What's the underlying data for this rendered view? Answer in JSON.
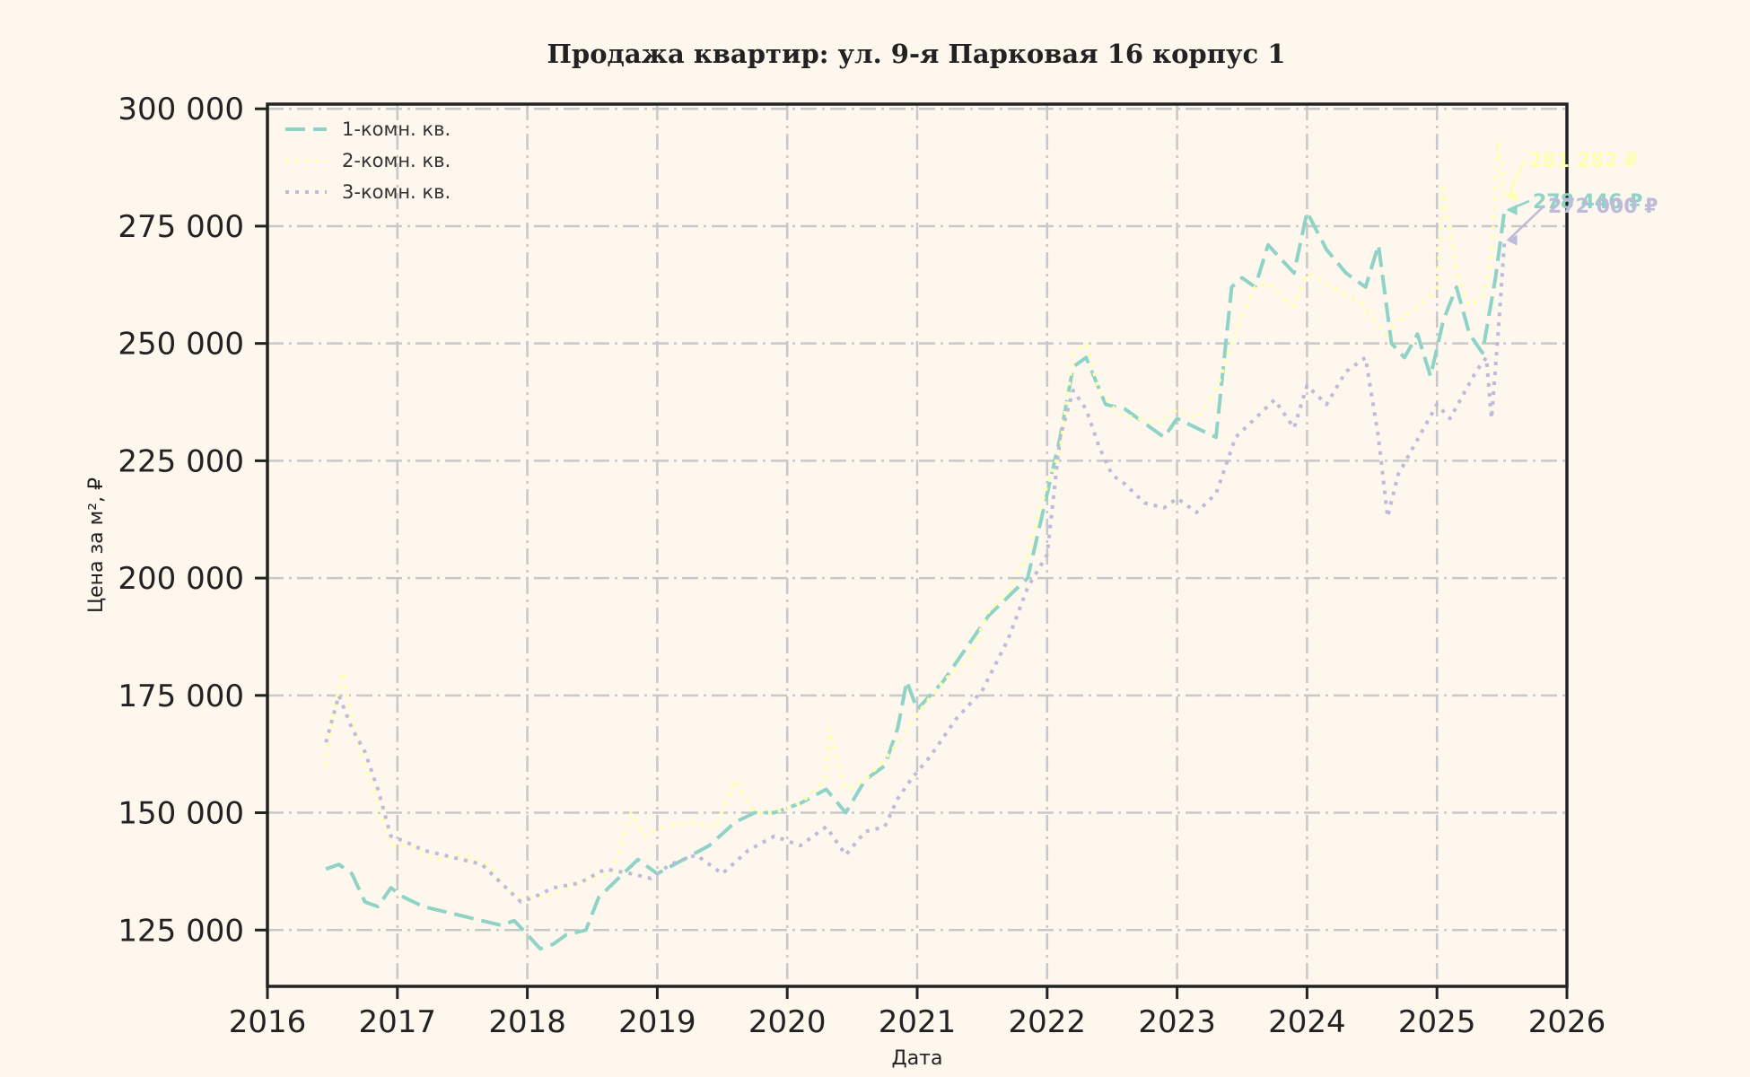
{
  "chart_data": {
    "type": "line",
    "title": "Продажа квартир: ул. 9-я Парковая 16 корпус 1",
    "xlabel": "Дата",
    "ylabel": "Цена за м², ₽",
    "xlim": [
      2016,
      2026
    ],
    "ylim": [
      113000,
      301000
    ],
    "x_ticks": [
      "2016",
      "2017",
      "2018",
      "2019",
      "2020",
      "2021",
      "2022",
      "2023",
      "2024",
      "2025",
      "2026"
    ],
    "y_ticks": [
      {
        "value": 125000,
        "label": "125 000"
      },
      {
        "value": 150000,
        "label": "150 000"
      },
      {
        "value": 175000,
        "label": "175 000"
      },
      {
        "value": 200000,
        "label": "200 000"
      },
      {
        "value": 225000,
        "label": "225 000"
      },
      {
        "value": 250000,
        "label": "250 000"
      },
      {
        "value": 275000,
        "label": "275 000"
      },
      {
        "value": 300000,
        "label": "300 000"
      }
    ],
    "grid": true,
    "legend_position": "top-left",
    "series": [
      {
        "name": "1-комн. кв.",
        "color": "#8fd3c7",
        "dash": "dashed",
        "end_label": "278 446 ₽",
        "x": [
          2016.45,
          2016.55,
          2016.65,
          2016.75,
          2016.85,
          2016.95,
          2017.05,
          2017.2,
          2017.35,
          2017.5,
          2017.65,
          2017.8,
          2017.9,
          2018.0,
          2018.1,
          2018.2,
          2018.3,
          2018.45,
          2018.55,
          2018.7,
          2018.85,
          2019.0,
          2019.2,
          2019.4,
          2019.6,
          2019.75,
          2019.9,
          2020.1,
          2020.3,
          2020.45,
          2020.6,
          2020.75,
          2020.85,
          2020.92,
          2021.0,
          2021.2,
          2021.4,
          2021.55,
          2021.7,
          2021.85,
          2022.0,
          2022.1,
          2022.2,
          2022.3,
          2022.45,
          2022.6,
          2022.75,
          2022.9,
          2023.0,
          2023.15,
          2023.3,
          2023.42,
          2023.5,
          2023.6,
          2023.7,
          2023.8,
          2023.9,
          2024.0,
          2024.15,
          2024.3,
          2024.45,
          2024.55,
          2024.65,
          2024.75,
          2024.85,
          2024.95,
          2025.05,
          2025.15,
          2025.25,
          2025.35,
          2025.45,
          2025.52
        ],
        "y": [
          138000,
          139000,
          137000,
          131000,
          130000,
          134000,
          132000,
          130000,
          129000,
          128000,
          127000,
          126000,
          127000,
          124000,
          121000,
          122000,
          124000,
          125000,
          132000,
          136000,
          140000,
          137000,
          140000,
          143000,
          148000,
          150000,
          150000,
          152000,
          155000,
          150000,
          157000,
          160000,
          168000,
          178000,
          172000,
          178000,
          186000,
          192000,
          196000,
          200000,
          218000,
          230000,
          245000,
          247000,
          237000,
          236000,
          233000,
          230000,
          234000,
          232000,
          230000,
          262000,
          264000,
          262000,
          271000,
          268000,
          265000,
          278000,
          270000,
          265000,
          262000,
          271000,
          250000,
          247000,
          252000,
          243000,
          255000,
          262000,
          252000,
          248000,
          264000,
          278446
        ]
      },
      {
        "name": "2-комн. кв.",
        "color": "#ffffb3",
        "dash": "dotted",
        "end_label": "281 282 ₽",
        "x": [
          2016.45,
          2016.5,
          2016.58,
          2016.65,
          2016.75,
          2016.85,
          2016.95,
          2017.1,
          2017.3,
          2017.5,
          2017.7,
          2017.85,
          2018.0,
          2018.15,
          2018.3,
          2018.5,
          2018.65,
          2018.8,
          2018.9,
          2019.05,
          2019.25,
          2019.45,
          2019.6,
          2019.75,
          2019.9,
          2020.1,
          2020.3,
          2020.32,
          2020.45,
          2020.6,
          2020.8,
          2021.0,
          2021.2,
          2021.4,
          2021.55,
          2021.7,
          2021.85,
          2022.0,
          2022.1,
          2022.2,
          2022.3,
          2022.4,
          2022.55,
          2022.7,
          2022.85,
          2023.0,
          2023.15,
          2023.3,
          2023.42,
          2023.5,
          2023.6,
          2023.7,
          2023.8,
          2023.9,
          2024.0,
          2024.2,
          2024.4,
          2024.6,
          2024.75,
          2024.85,
          2024.95,
          2025.0,
          2025.05,
          2025.15,
          2025.25,
          2025.35,
          2025.42,
          2025.47,
          2025.52
        ],
        "y": [
          160000,
          170000,
          180000,
          170000,
          160000,
          152000,
          143000,
          143000,
          140000,
          141000,
          139000,
          133000,
          132000,
          132000,
          134000,
          136000,
          137000,
          150000,
          145000,
          147000,
          148000,
          147000,
          157000,
          150000,
          150000,
          152000,
          157000,
          168000,
          155000,
          157000,
          163000,
          171000,
          178000,
          183000,
          193000,
          197000,
          205000,
          220000,
          227000,
          248000,
          250000,
          240000,
          235000,
          234000,
          233000,
          236000,
          234000,
          240000,
          250000,
          256000,
          262000,
          263000,
          260000,
          258000,
          265000,
          262000,
          259000,
          252000,
          256000,
          258000,
          260000,
          262000,
          283000,
          265000,
          258000,
          260000,
          268000,
          293000,
          281282
        ]
      },
      {
        "name": "3-комн. кв.",
        "color": "#bebada",
        "dash": "dotted",
        "end_label": "272 000 ₽",
        "x": [
          2016.45,
          2016.55,
          2016.65,
          2016.75,
          2016.85,
          2016.95,
          2017.05,
          2017.2,
          2017.35,
          2017.5,
          2017.65,
          2017.8,
          2017.95,
          2018.05,
          2018.2,
          2018.4,
          2018.6,
          2018.8,
          2018.95,
          2019.1,
          2019.3,
          2019.5,
          2019.7,
          2019.9,
          2020.1,
          2020.3,
          2020.45,
          2020.6,
          2020.75,
          2020.85,
          2020.95,
          2021.1,
          2021.3,
          2021.5,
          2021.7,
          2021.85,
          2022.0,
          2022.1,
          2022.2,
          2022.3,
          2022.4,
          2022.5,
          2022.6,
          2022.75,
          2022.9,
          2023.0,
          2023.15,
          2023.3,
          2023.45,
          2023.6,
          2023.75,
          2023.9,
          2024.0,
          2024.15,
          2024.3,
          2024.45,
          2024.55,
          2024.62,
          2024.7,
          2024.8,
          2024.9,
          2025.0,
          2025.1,
          2025.2,
          2025.3,
          2025.38,
          2025.42,
          2025.47,
          2025.52
        ],
        "y": [
          165000,
          175000,
          168000,
          163000,
          155000,
          145000,
          144000,
          142000,
          141000,
          140000,
          139000,
          135000,
          131000,
          132000,
          134000,
          135000,
          138000,
          137000,
          136000,
          139000,
          141000,
          137000,
          142000,
          145000,
          143000,
          147000,
          141000,
          146000,
          147000,
          153000,
          157000,
          162000,
          170000,
          176000,
          187000,
          198000,
          205000,
          230000,
          240000,
          236000,
          228000,
          222000,
          220000,
          216000,
          215000,
          217000,
          214000,
          218000,
          230000,
          234000,
          238000,
          232000,
          241000,
          237000,
          244000,
          247000,
          230000,
          213000,
          222000,
          227000,
          232000,
          237000,
          234000,
          239000,
          244000,
          247000,
          234000,
          252000,
          272000
        ]
      }
    ]
  }
}
